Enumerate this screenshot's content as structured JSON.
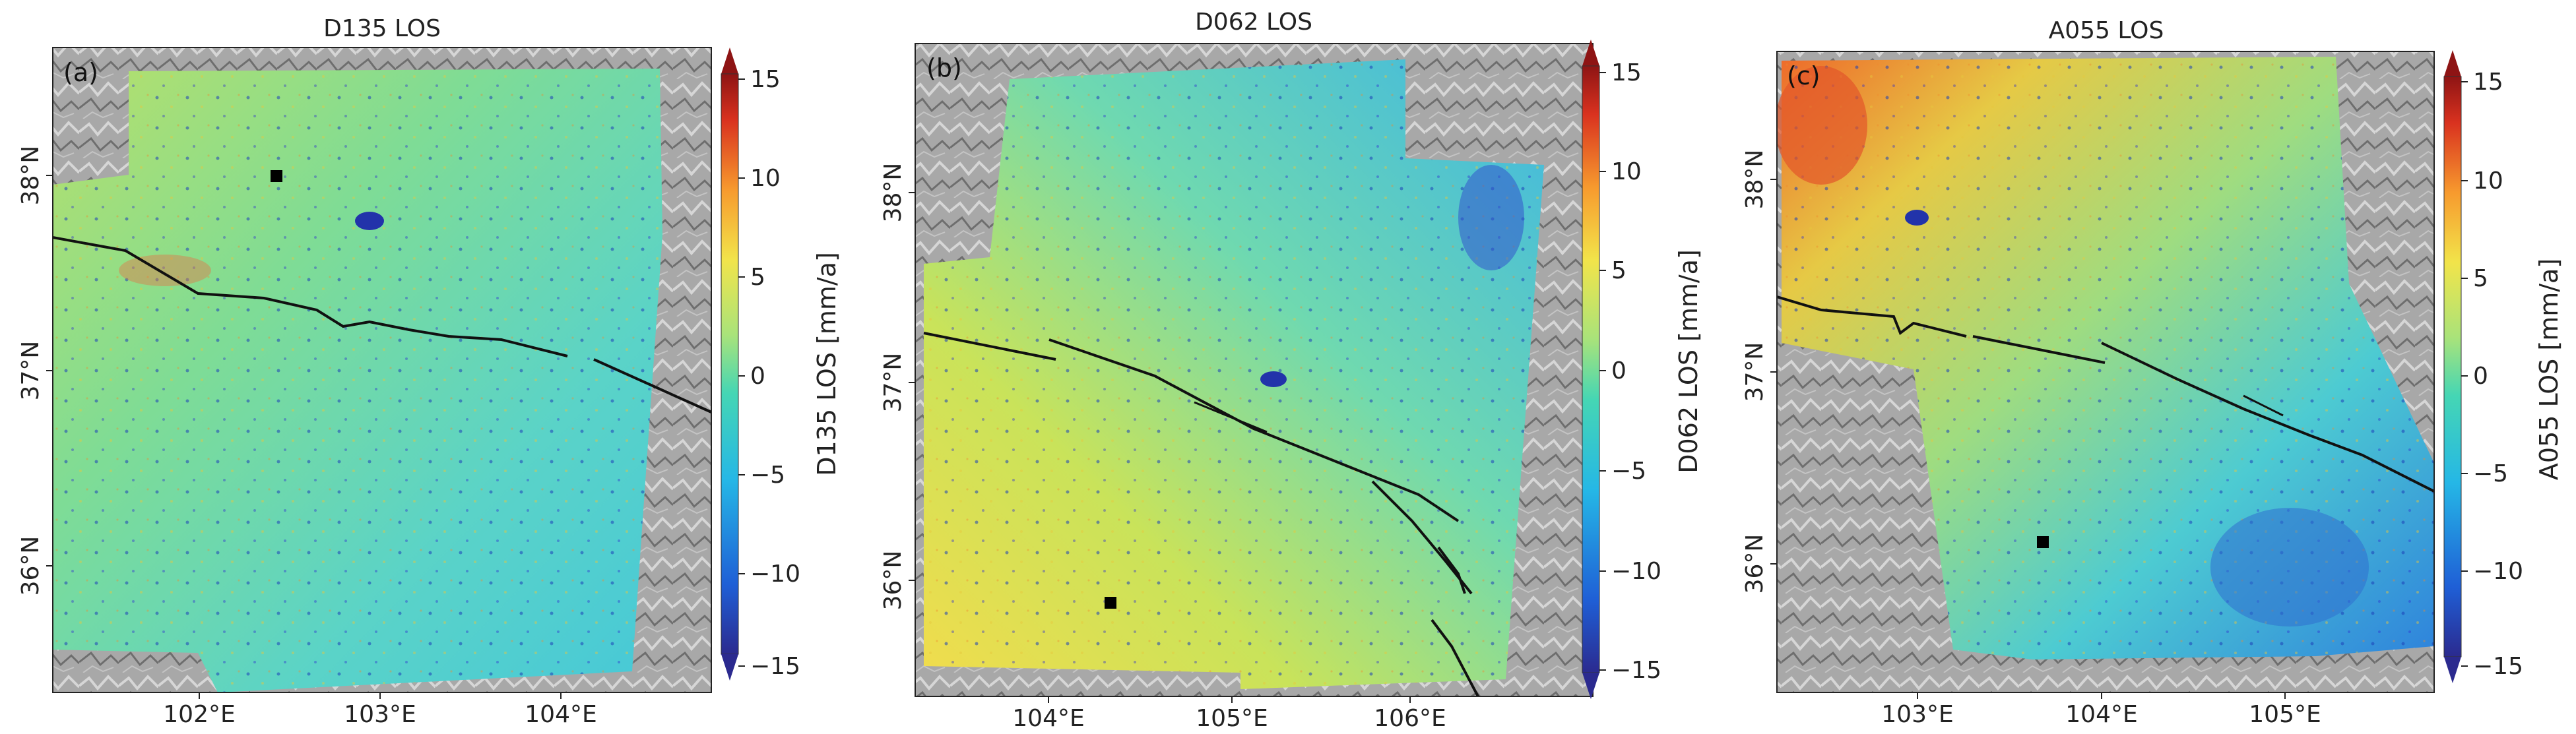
{
  "chart_data": [
    {
      "type": "heatmap",
      "title": "D135 LOS",
      "panel_label": "(a)",
      "x_ticks": [
        "102°E",
        "103°E",
        "104°E"
      ],
      "y_ticks": [
        "36°N",
        "37°N",
        "38°N"
      ],
      "colorbar": {
        "label": "D135 LOS [mm/a]",
        "ticks": [
          "15",
          "10",
          "5",
          "0",
          "−5",
          "−10",
          "−15"
        ],
        "range": [
          -15,
          15
        ]
      }
    },
    {
      "type": "heatmap",
      "title": "D062 LOS",
      "panel_label": "(b)",
      "x_ticks": [
        "104°E",
        "105°E",
        "106°E"
      ],
      "y_ticks": [
        "36°N",
        "37°N",
        "38°N"
      ],
      "colorbar": {
        "label": "D062 LOS [mm/a]",
        "ticks": [
          "15",
          "10",
          "5",
          "0",
          "−5",
          "−10",
          "−15"
        ],
        "range": [
          -15,
          15
        ]
      }
    },
    {
      "type": "heatmap",
      "title": "A055 LOS",
      "panel_label": "(c)",
      "x_ticks": [
        "103°E",
        "104°E",
        "105°E"
      ],
      "y_ticks": [
        "36°N",
        "37°N",
        "38°N"
      ],
      "colorbar": {
        "label": "A055 LOS [mm/a]",
        "ticks": [
          "15",
          "10",
          "5",
          "0",
          "−5",
          "−10",
          "−15"
        ],
        "range": [
          -15,
          15
        ]
      }
    }
  ],
  "colors": {
    "background_relief": "#9a9a9a",
    "fault_line": "#000000",
    "colormap": [
      "#2b2a8f",
      "#1f5fd6",
      "#25b7e6",
      "#45d6b4",
      "#a9e37a",
      "#f2e44a",
      "#f79a2e",
      "#d9321f",
      "#8e1414"
    ]
  },
  "icons": {
    "reference_point": "black-square-marker"
  }
}
